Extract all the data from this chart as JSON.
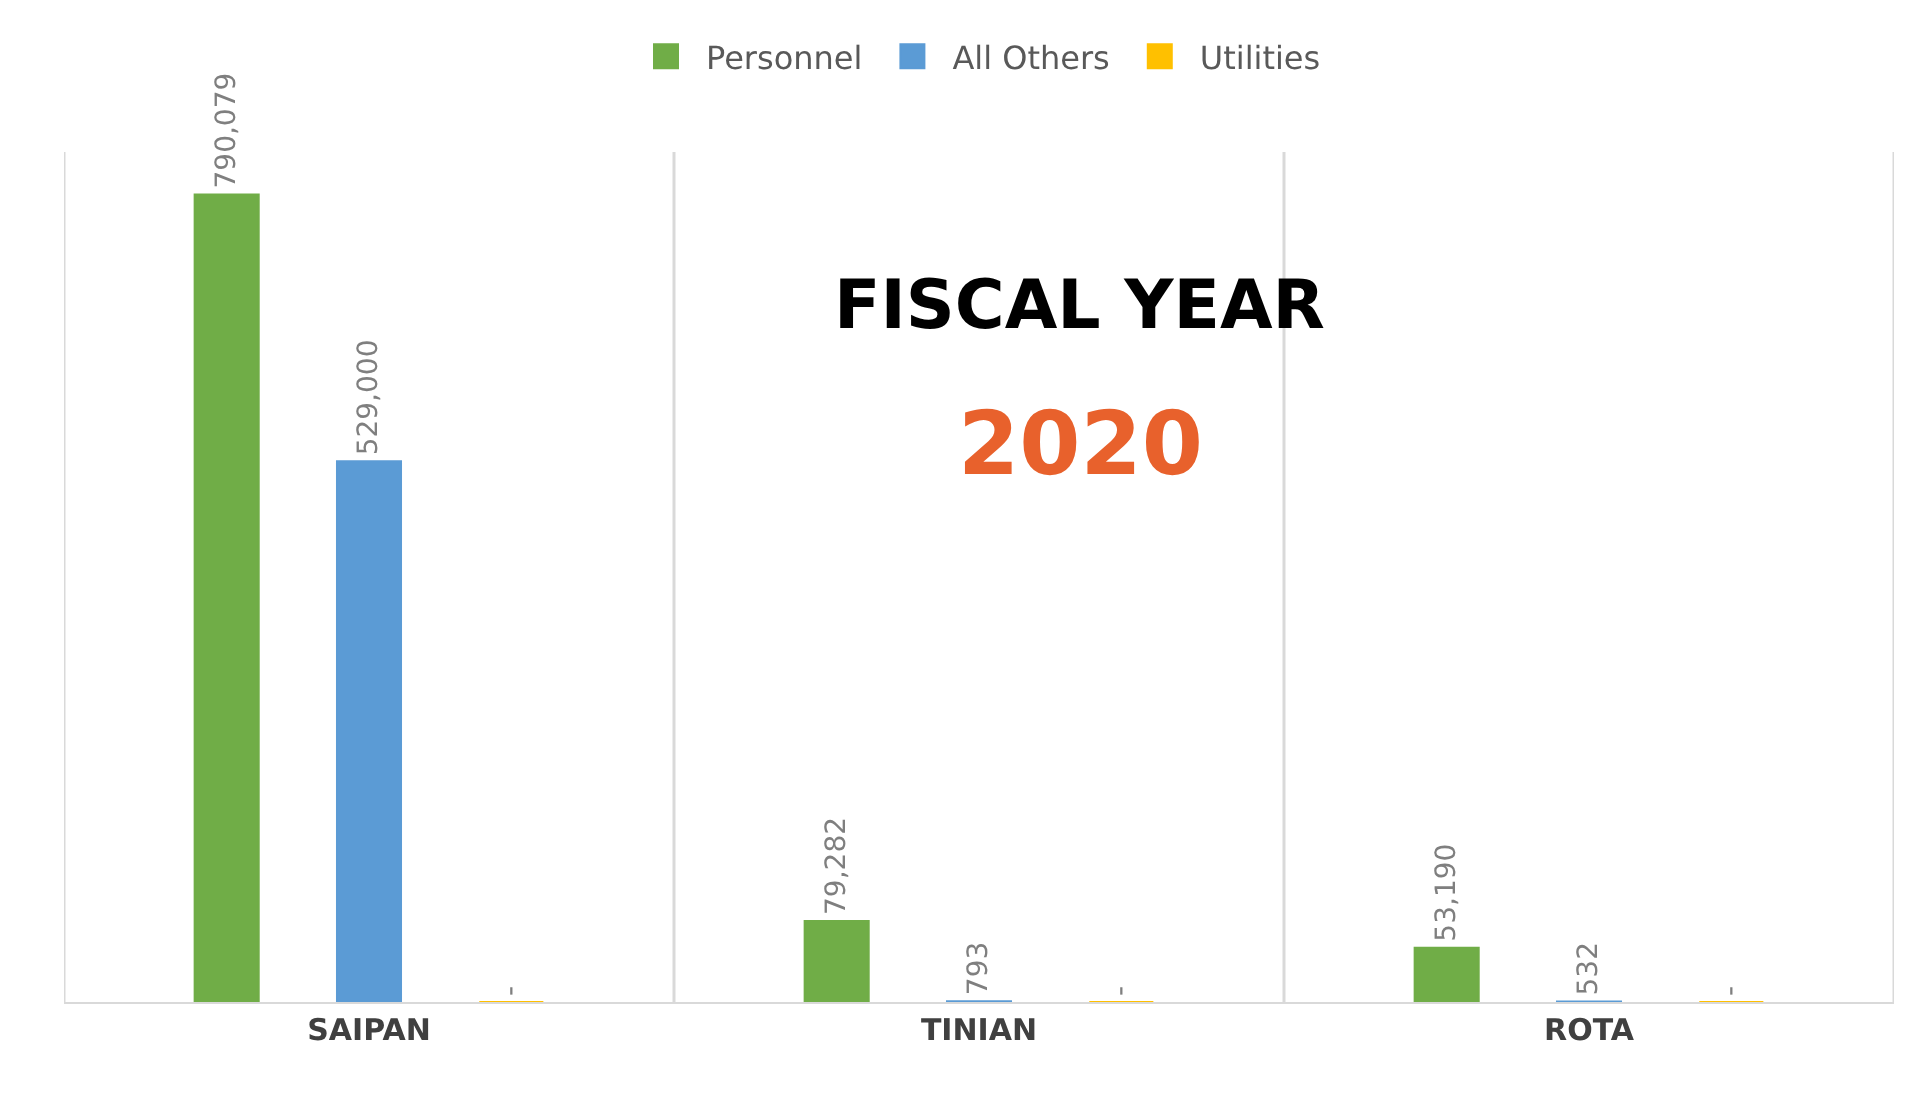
{
  "chart_data": {
    "type": "bar",
    "title": "FISCAL YEAR",
    "subtitle": "2020",
    "categories": [
      "SAIPAN",
      "TINIAN",
      "ROTA"
    ],
    "series": [
      {
        "name": "Personnel",
        "color": "#70ad47",
        "values": [
          790079,
          79282,
          53190
        ],
        "value_labels": [
          "790,079",
          "79,282",
          "53,190"
        ]
      },
      {
        "name": "All Others",
        "color": "#5b9bd5",
        "values": [
          529000,
          793,
          532
        ],
        "value_labels": [
          "529,000",
          "793",
          "532"
        ]
      },
      {
        "name": "Utilities",
        "color": "#ffc000",
        "values": [
          0,
          0,
          0
        ],
        "value_labels": [
          "-",
          "-",
          "-"
        ]
      }
    ],
    "grid": "x",
    "legend": "top"
  }
}
